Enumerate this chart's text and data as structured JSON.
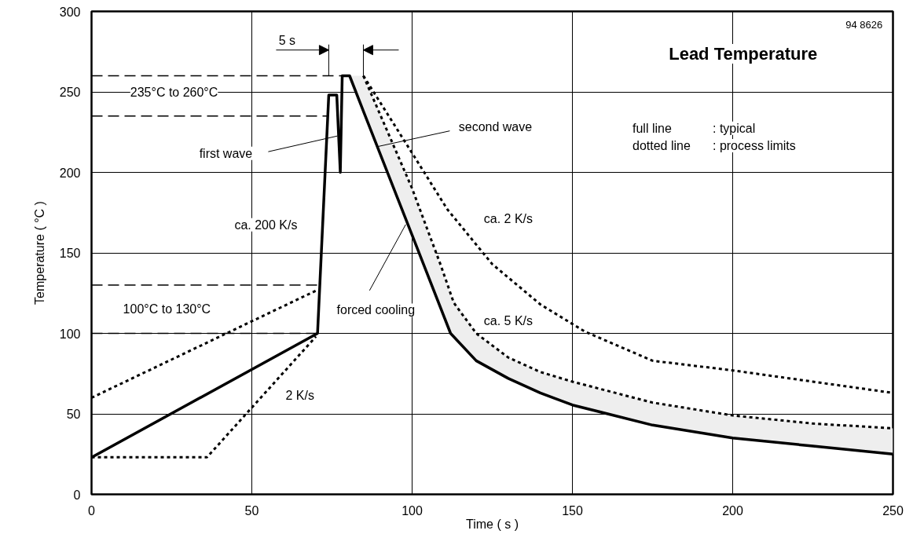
{
  "chart_data": {
    "type": "line",
    "title": "Lead Temperature",
    "xlabel": "Time ( s )",
    "ylabel": "Temperature ( °C )",
    "xlim": [
      0,
      250
    ],
    "ylim": [
      0,
      300
    ],
    "xticks": [
      0,
      50,
      100,
      150,
      200,
      250
    ],
    "yticks": [
      0,
      50,
      100,
      150,
      200,
      250,
      300
    ],
    "grid": true,
    "series": [
      {
        "color": "#000000",
        "line_style": "solid",
        "x": [
          0,
          70.5,
          74,
          76.5,
          77.6,
          78.2,
          80.5,
          85,
          100,
          112,
          120,
          130,
          140,
          150,
          175,
          200,
          225,
          250
        ],
        "values": [
          23,
          100,
          248,
          248,
          200,
          260,
          260,
          237,
          161,
          100,
          83,
          72,
          63,
          55.5,
          43,
          35,
          30,
          25
        ],
        "lower": [
          null,
          null,
          null,
          null,
          null,
          null,
          260,
          237,
          161,
          100,
          83,
          72,
          63,
          55.5,
          43,
          35,
          30,
          25
        ],
        "upper": [
          null,
          null,
          null,
          null,
          null,
          null,
          260,
          260,
          190,
          124,
          100,
          85,
          76,
          70,
          57,
          49,
          44,
          41
        ]
      },
      {
        "color": "#000000",
        "line_style": "dotted",
        "x": [
          0,
          70.5
        ],
        "values": [
          60,
          127
        ]
      },
      {
        "color": "#000000",
        "line_style": "dotted",
        "x": [
          0,
          36,
          70
        ],
        "values": [
          23,
          23,
          98
        ]
      },
      {
        "color": "#000000",
        "line_style": "dotted",
        "x": [
          84.8,
          100,
          109,
          113,
          120,
          130,
          140,
          150,
          175,
          200,
          225,
          250
        ],
        "values": [
          260,
          190,
          142,
          119,
          100,
          85,
          76,
          70,
          57,
          49,
          44,
          41
        ]
      },
      {
        "color": "#000000",
        "line_style": "dotted",
        "x": [
          84.8,
          100,
          111,
          125,
          140,
          154,
          175,
          200,
          225,
          250
        ],
        "values": [
          260,
          212,
          177,
          143,
          118,
          101,
          83,
          77,
          70,
          63
        ]
      }
    ],
    "ref_lines": [
      {
        "axis": "y",
        "value": 260,
        "color": "#000000",
        "line_style": "dashed"
      },
      {
        "axis": "y",
        "value": 235,
        "color": "#000000",
        "line_style": "dashed"
      },
      {
        "axis": "y",
        "value": 130,
        "color": "#000000",
        "line_style": "dashed"
      },
      {
        "axis": "y",
        "value": 100,
        "color": "#000000",
        "line_style": "dashed"
      }
    ],
    "annotations": [
      "94 8626",
      "full line : typical",
      "dotted line : process limits",
      "5 s",
      "235°C to 260°C",
      {
        "text": "first wave",
        "x": 76.7,
        "y": 222.6
      },
      {
        "text": "second wave",
        "x": 89.2,
        "y": 216
      },
      "ca. 200 K/s",
      "ca. 2 K/s",
      {
        "text": "forced cooling",
        "x": 98,
        "y": 167.6
      },
      "100°C to 130°C",
      "ca. 5 K/s",
      "2 K/s"
    ]
  }
}
